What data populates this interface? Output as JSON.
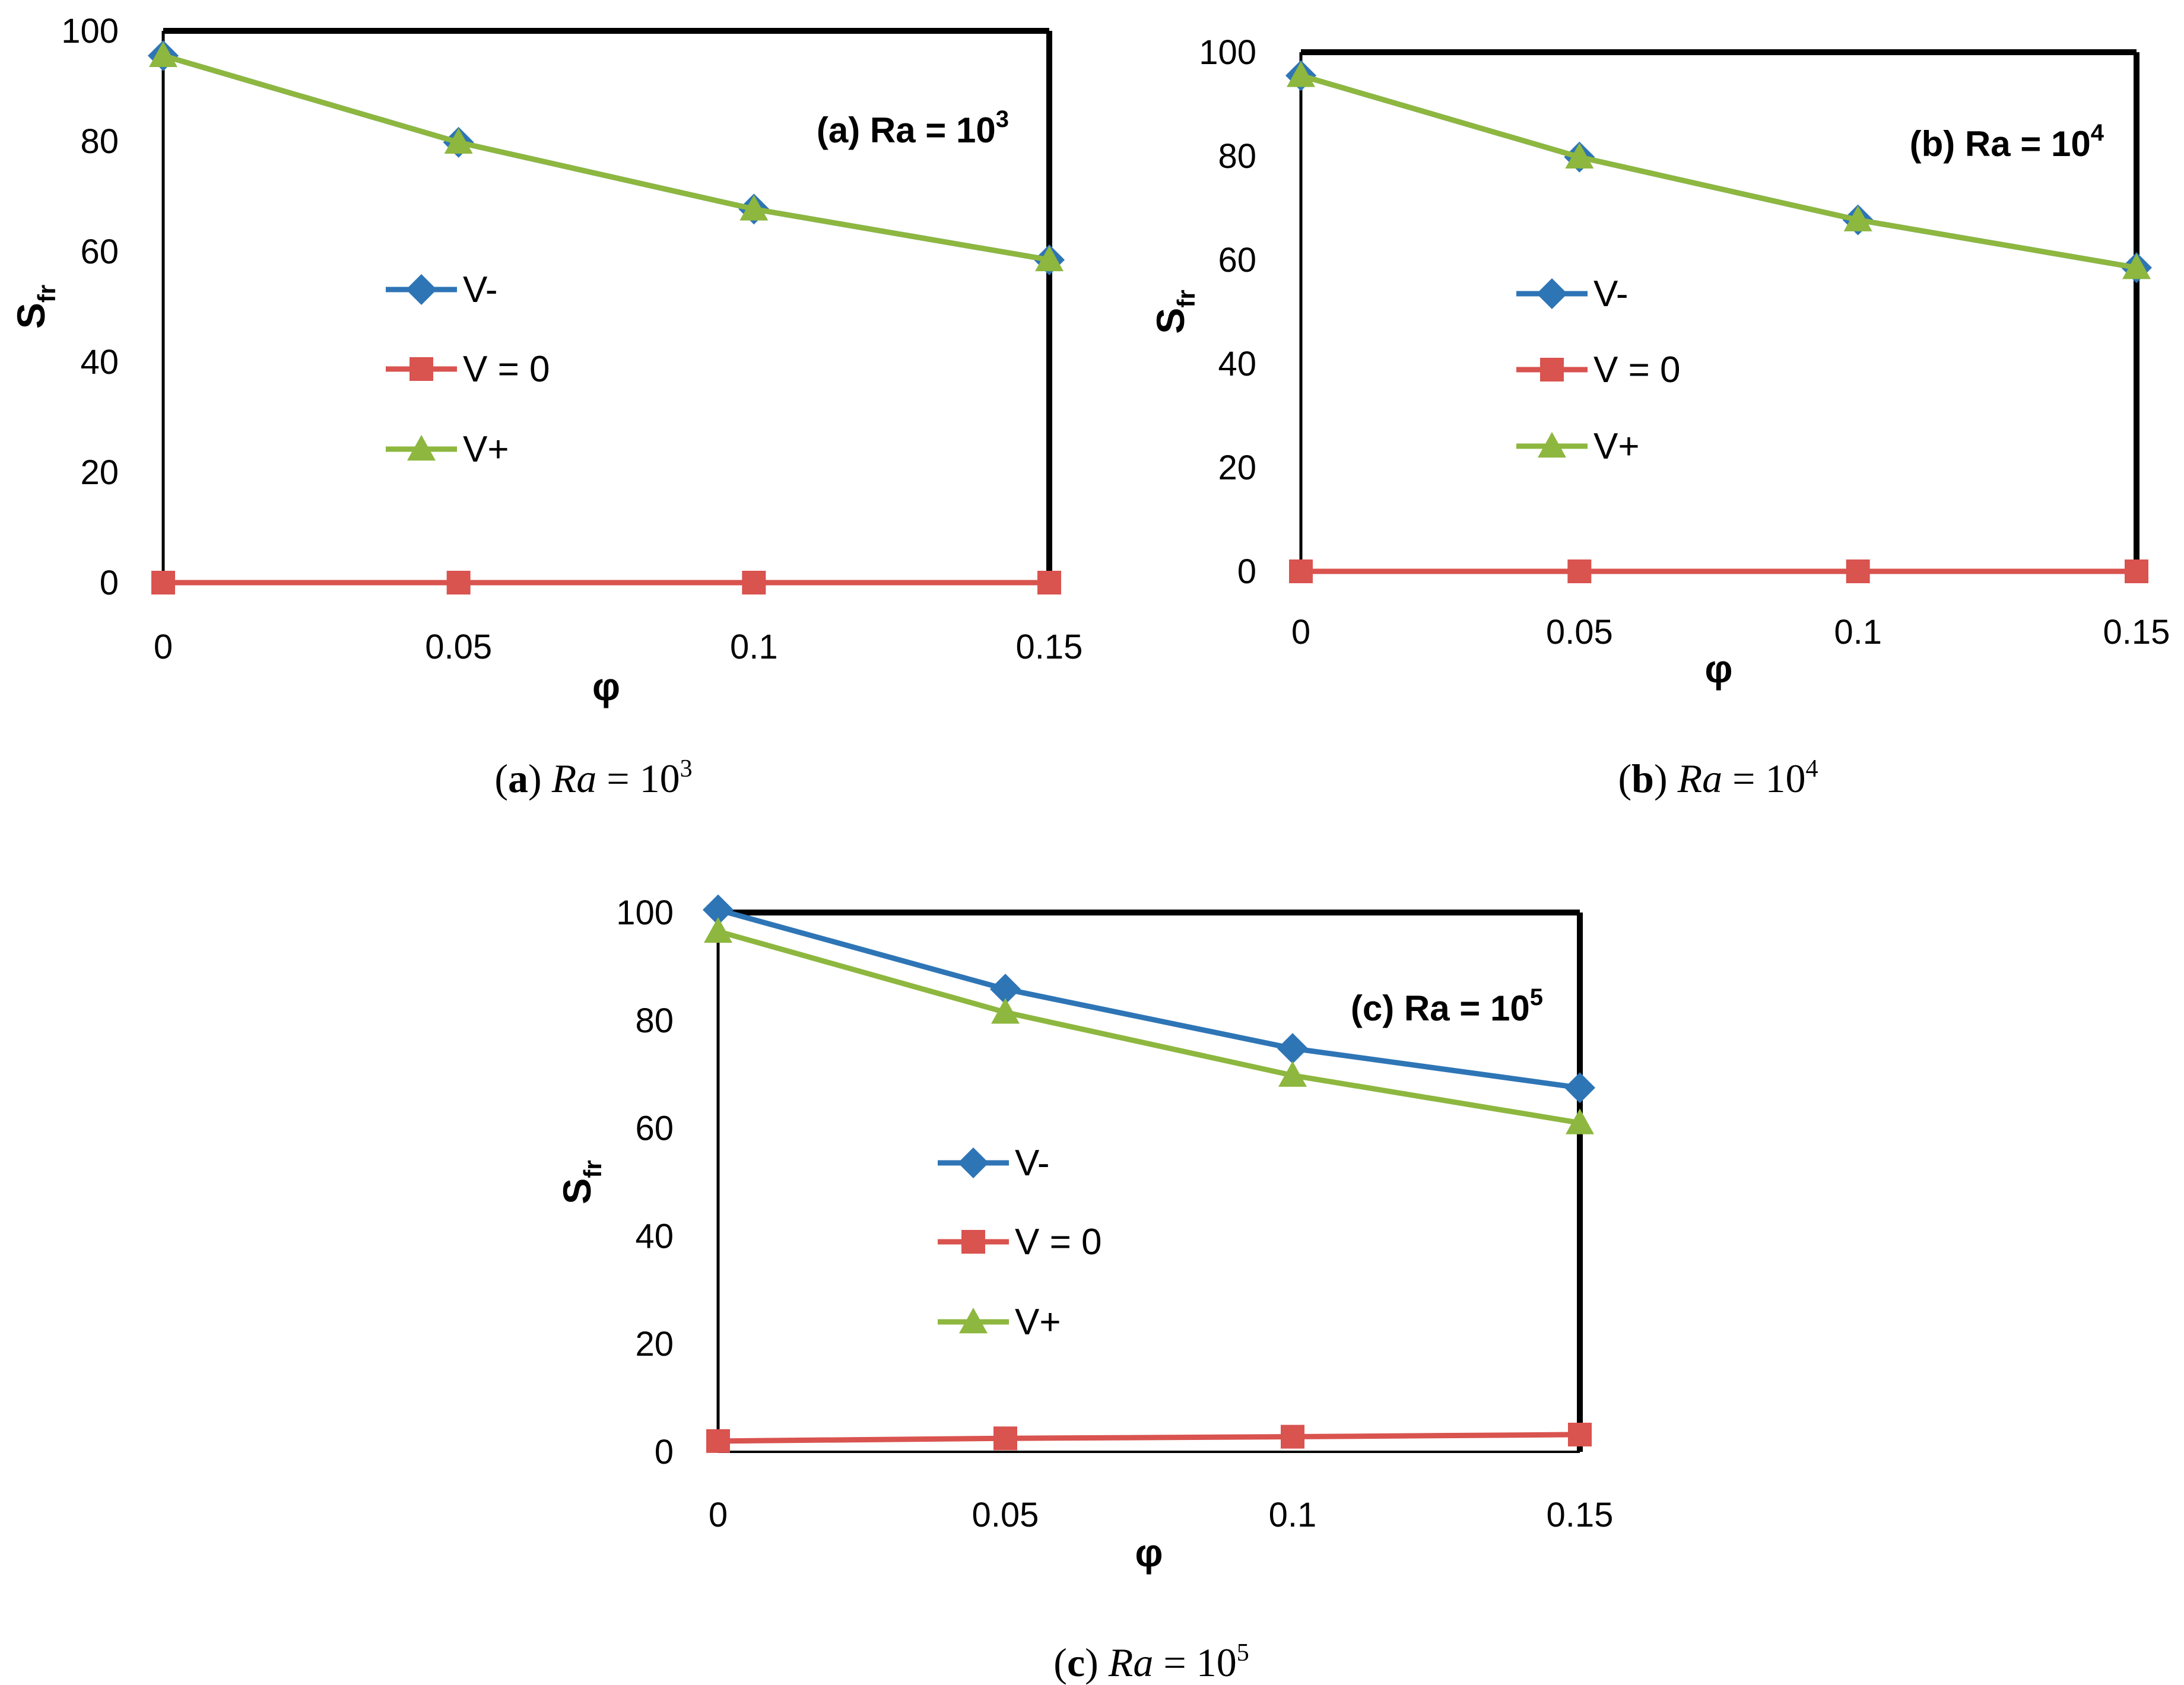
{
  "chart_data": [
    {
      "type": "line",
      "panel": "a",
      "title": "(a) Ra = 10",
      "title_sup": "3",
      "caption": {
        "tag": "a",
        "ital": "Ra",
        "eq": "= 10",
        "sup": "3"
      },
      "xlabel": "φ",
      "ylabel": "S",
      "ylabel_sub": "fr",
      "x": [
        0,
        0.05,
        0.1,
        0.15
      ],
      "x_tick_labels": [
        "0",
        "0.05",
        "0.1",
        "0.15"
      ],
      "y_tick_labels": [
        "0",
        "20",
        "40",
        "60",
        "80",
        "100"
      ],
      "ylim": [
        0,
        100
      ],
      "legend_position": "center-left",
      "series": [
        {
          "name": "V-",
          "color": "#2E75B6",
          "marker": "diamond",
          "values": [
            95.5,
            79.8,
            67.7,
            58.5
          ]
        },
        {
          "name": "V = 0",
          "color": "#D9534F",
          "marker": "square",
          "values": [
            0,
            0,
            0,
            0
          ]
        },
        {
          "name": "V+",
          "color": "#8DB73F",
          "marker": "triangle",
          "values": [
            95.5,
            79.8,
            67.7,
            58.5
          ]
        }
      ]
    },
    {
      "type": "line",
      "panel": "b",
      "title": "(b) Ra = 10",
      "title_sup": "4",
      "caption": {
        "tag": "b",
        "ital": "Ra",
        "eq": "= 10",
        "sup": "4"
      },
      "xlabel": "φ",
      "ylabel": "S",
      "ylabel_sub": "fr",
      "x": [
        0,
        0.05,
        0.1,
        0.15
      ],
      "x_tick_labels": [
        "0",
        "0.05",
        "0.1",
        "0.15"
      ],
      "y_tick_labels": [
        "0",
        "20",
        "40",
        "60",
        "80",
        "100"
      ],
      "ylim": [
        0,
        100
      ],
      "legend_position": "center-left",
      "series": [
        {
          "name": "V-",
          "color": "#2E75B6",
          "marker": "diamond",
          "values": [
            95.5,
            79.8,
            67.7,
            58.5
          ]
        },
        {
          "name": "V = 0",
          "color": "#D9534F",
          "marker": "square",
          "values": [
            0,
            0,
            0,
            0
          ]
        },
        {
          "name": "V+",
          "color": "#8DB73F",
          "marker": "triangle",
          "values": [
            95.5,
            79.8,
            67.7,
            58.5
          ]
        }
      ]
    },
    {
      "type": "line",
      "panel": "c",
      "title": "(c) Ra = 10",
      "title_sup": "5",
      "caption": {
        "tag": "c",
        "ital": "Ra",
        "eq": "= 10",
        "sup": "5"
      },
      "xlabel": "φ",
      "ylabel": "S",
      "ylabel_sub": "fr",
      "x": [
        0,
        0.05,
        0.1,
        0.15
      ],
      "x_tick_labels": [
        "0",
        "0.05",
        "0.1",
        "0.15"
      ],
      "y_tick_labels": [
        "0",
        "20",
        "40",
        "60",
        "80",
        "100"
      ],
      "ylim": [
        0,
        100
      ],
      "legend_position": "center-left",
      "series": [
        {
          "name": "V-",
          "color": "#2E75B6",
          "marker": "diamond",
          "values": [
            100.5,
            85.8,
            74.8,
            67.5
          ]
        },
        {
          "name": "V = 0",
          "color": "#D9534F",
          "marker": "square",
          "values": [
            2.0,
            2.5,
            2.8,
            3.2
          ]
        },
        {
          "name": "V+",
          "color": "#8DB73F",
          "marker": "triangle",
          "values": [
            96.5,
            81.5,
            69.8,
            61.0
          ]
        }
      ]
    }
  ]
}
